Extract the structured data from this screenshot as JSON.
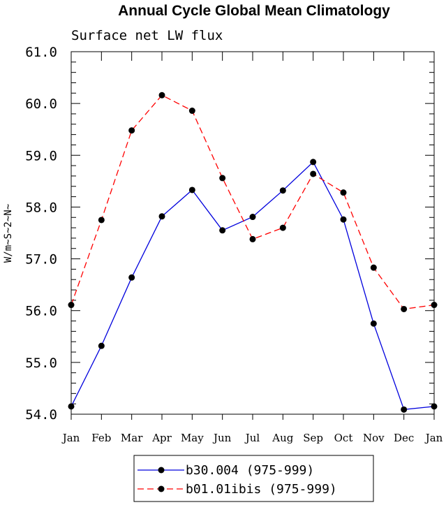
{
  "chart_data": {
    "type": "line",
    "title": "Annual Cycle Global Mean Climatology",
    "subtitle": "Surface net LW flux",
    "ylabel": "W/m~S~2~N~",
    "xlabel": "",
    "categories": [
      "Jan",
      "Feb",
      "Mar",
      "Apr",
      "May",
      "Jun",
      "Jul",
      "Aug",
      "Sep",
      "Oct",
      "Nov",
      "Dec",
      "Jan"
    ],
    "ylim": [
      54.0,
      61.0
    ],
    "yticks": [
      "54.0",
      "55.0",
      "56.0",
      "57.0",
      "58.0",
      "59.0",
      "60.0",
      "61.0"
    ],
    "grid": false,
    "legend_position": "bottom-center",
    "series": [
      {
        "name": "b30.004 (975-999)",
        "color": "#0000dd",
        "style": "solid",
        "values": [
          54.15,
          55.32,
          56.64,
          57.82,
          58.33,
          57.55,
          57.81,
          58.32,
          58.87,
          57.76,
          55.75,
          54.09,
          54.15
        ]
      },
      {
        "name": "b01.01ibis (975-999)",
        "color": "#ff0000",
        "style": "dashed",
        "values": [
          56.11,
          57.75,
          59.48,
          60.16,
          59.86,
          58.56,
          57.38,
          57.6,
          58.64,
          58.28,
          56.83,
          56.03,
          56.11
        ]
      }
    ]
  }
}
